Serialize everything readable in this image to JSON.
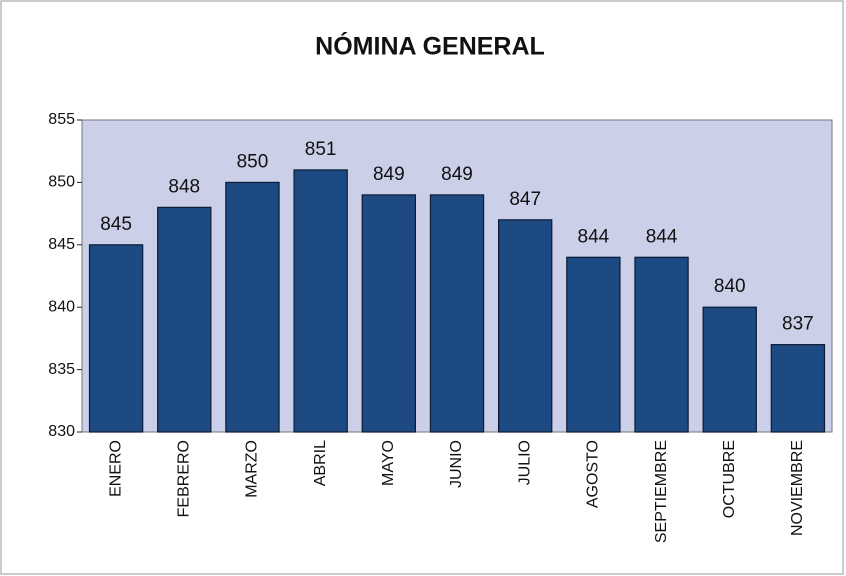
{
  "chart_data": {
    "type": "bar",
    "title": "NÓMINA GENERAL",
    "categories": [
      "ENERO",
      "FEBRERO",
      "MARZO",
      "ABRIL",
      "MAYO",
      "JUNIO",
      "JULIO",
      "AGOSTO",
      "SEPTIEMBRE",
      "OCTUBRE",
      "NOVIEMBRE"
    ],
    "values": [
      845,
      848,
      850,
      851,
      849,
      849,
      847,
      844,
      844,
      840,
      837
    ],
    "color": "#1d4a82",
    "ylim": [
      830,
      855
    ],
    "yticks": [
      830,
      835,
      840,
      845,
      850,
      855
    ],
    "grid": false
  }
}
